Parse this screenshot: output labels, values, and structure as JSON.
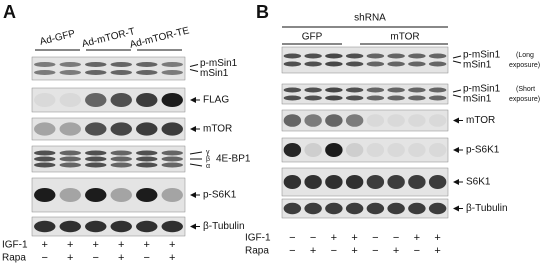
{
  "panel_a": {
    "label": "A",
    "groups": [
      "Ad-GFP",
      "Ad-mTOR-T",
      "Ad-mTOR-TE"
    ],
    "blots": [
      [
        "p-mSin1",
        "mSin1"
      ],
      [
        "FLAG"
      ],
      [
        "mTOR"
      ],
      [
        "γ",
        "β",
        "α",
        "4E-BP1"
      ],
      [
        "p-S6K1"
      ],
      [
        "β-Tubulin"
      ]
    ],
    "rows": [
      {
        "label": "IGF-1",
        "signs": [
          "+",
          "+",
          "+",
          "+",
          "+",
          "+"
        ]
      },
      {
        "label": "Rapa",
        "signs": [
          "−",
          "+",
          "−",
          "+",
          "−",
          "+"
        ]
      }
    ]
  },
  "panel_b": {
    "label": "B",
    "header": "shRNA",
    "groups": [
      "GFP",
      "mTOR"
    ],
    "blots": [
      [
        "p-mSin1",
        "mSin1",
        "(Long",
        "exposure)"
      ],
      [
        "p-mSin1",
        "mSin1",
        "(Short",
        "exposure)"
      ],
      [
        "mTOR"
      ],
      [
        "p-S6K1"
      ],
      [
        "S6K1"
      ],
      [
        "β-Tubulin"
      ]
    ],
    "rows": [
      {
        "label": "IGF-1",
        "signs": [
          "−",
          "−",
          "+",
          "+",
          "−",
          "−",
          "+",
          "+"
        ]
      },
      {
        "label": "Rapa",
        "signs": [
          "−",
          "+",
          "−",
          "+",
          "−",
          "+",
          "−",
          "+"
        ]
      }
    ]
  }
}
